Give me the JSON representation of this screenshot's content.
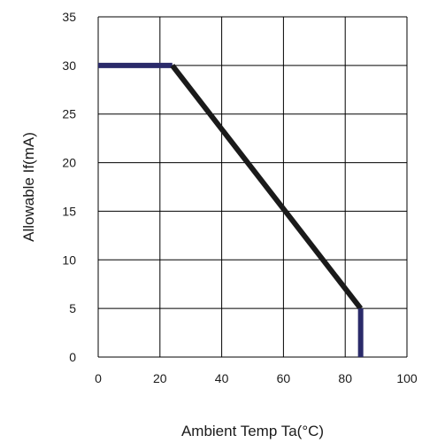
{
  "chart_data": {
    "type": "line",
    "title": "",
    "xlabel": "Ambient Temp Ta(°C)",
    "ylabel": "Allowable If(mA)",
    "xlim": [
      0,
      100
    ],
    "ylim": [
      0,
      35
    ],
    "xticks": [
      0,
      20,
      40,
      60,
      80,
      100
    ],
    "yticks": [
      0,
      5,
      10,
      15,
      20,
      25,
      30,
      35
    ],
    "grid": true,
    "series": [
      {
        "segments": [
          {
            "x": [
              0,
              24
            ],
            "y": [
              30,
              30
            ],
            "color": "#2a2a6a"
          },
          {
            "x": [
              24,
              85
            ],
            "y": [
              30,
              5
            ],
            "color": "#1a1a1a"
          },
          {
            "x": [
              85,
              85
            ],
            "y": [
              5,
              0
            ],
            "color": "#2a2a6a"
          }
        ]
      }
    ]
  }
}
